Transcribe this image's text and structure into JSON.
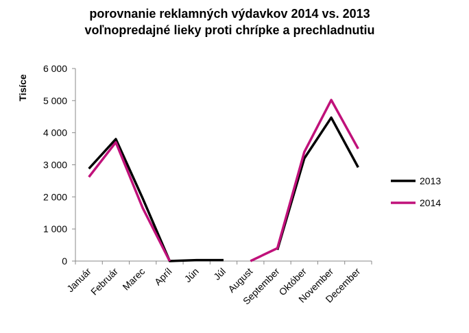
{
  "chart_data": {
    "type": "line",
    "title": "porovnanie reklamných výdavkov 2014 vs. 2013",
    "subtitle": "voľnopredajné lieky proti chrípke a prechladnutiu",
    "y_label": "Tisíce",
    "categories": [
      "Január",
      "Február",
      "Marec",
      "Apríl",
      "Jún",
      "Júl",
      "August",
      "September",
      "Október",
      "November",
      "December"
    ],
    "series": [
      {
        "name": "2013",
        "color": "#000000",
        "values": [
          2880,
          3800,
          1950,
          0,
          30,
          30,
          null,
          350,
          3200,
          4470,
          2920
        ]
      },
      {
        "name": "2014",
        "color": "#c0117a",
        "values": [
          2620,
          3700,
          1650,
          0,
          null,
          null,
          0,
          400,
          3400,
          5020,
          3500
        ]
      }
    ],
    "ylim": [
      0,
      6000
    ],
    "yticks": [
      {
        "value": 0,
        "label": "0"
      },
      {
        "value": 1000,
        "label": "1 000"
      },
      {
        "value": 2000,
        "label": "2 000"
      },
      {
        "value": 3000,
        "label": "3 000"
      },
      {
        "value": 4000,
        "label": "4 000"
      },
      {
        "value": 5000,
        "label": "5 000"
      },
      {
        "value": 6000,
        "label": "6 000"
      }
    ],
    "legend": "right"
  }
}
